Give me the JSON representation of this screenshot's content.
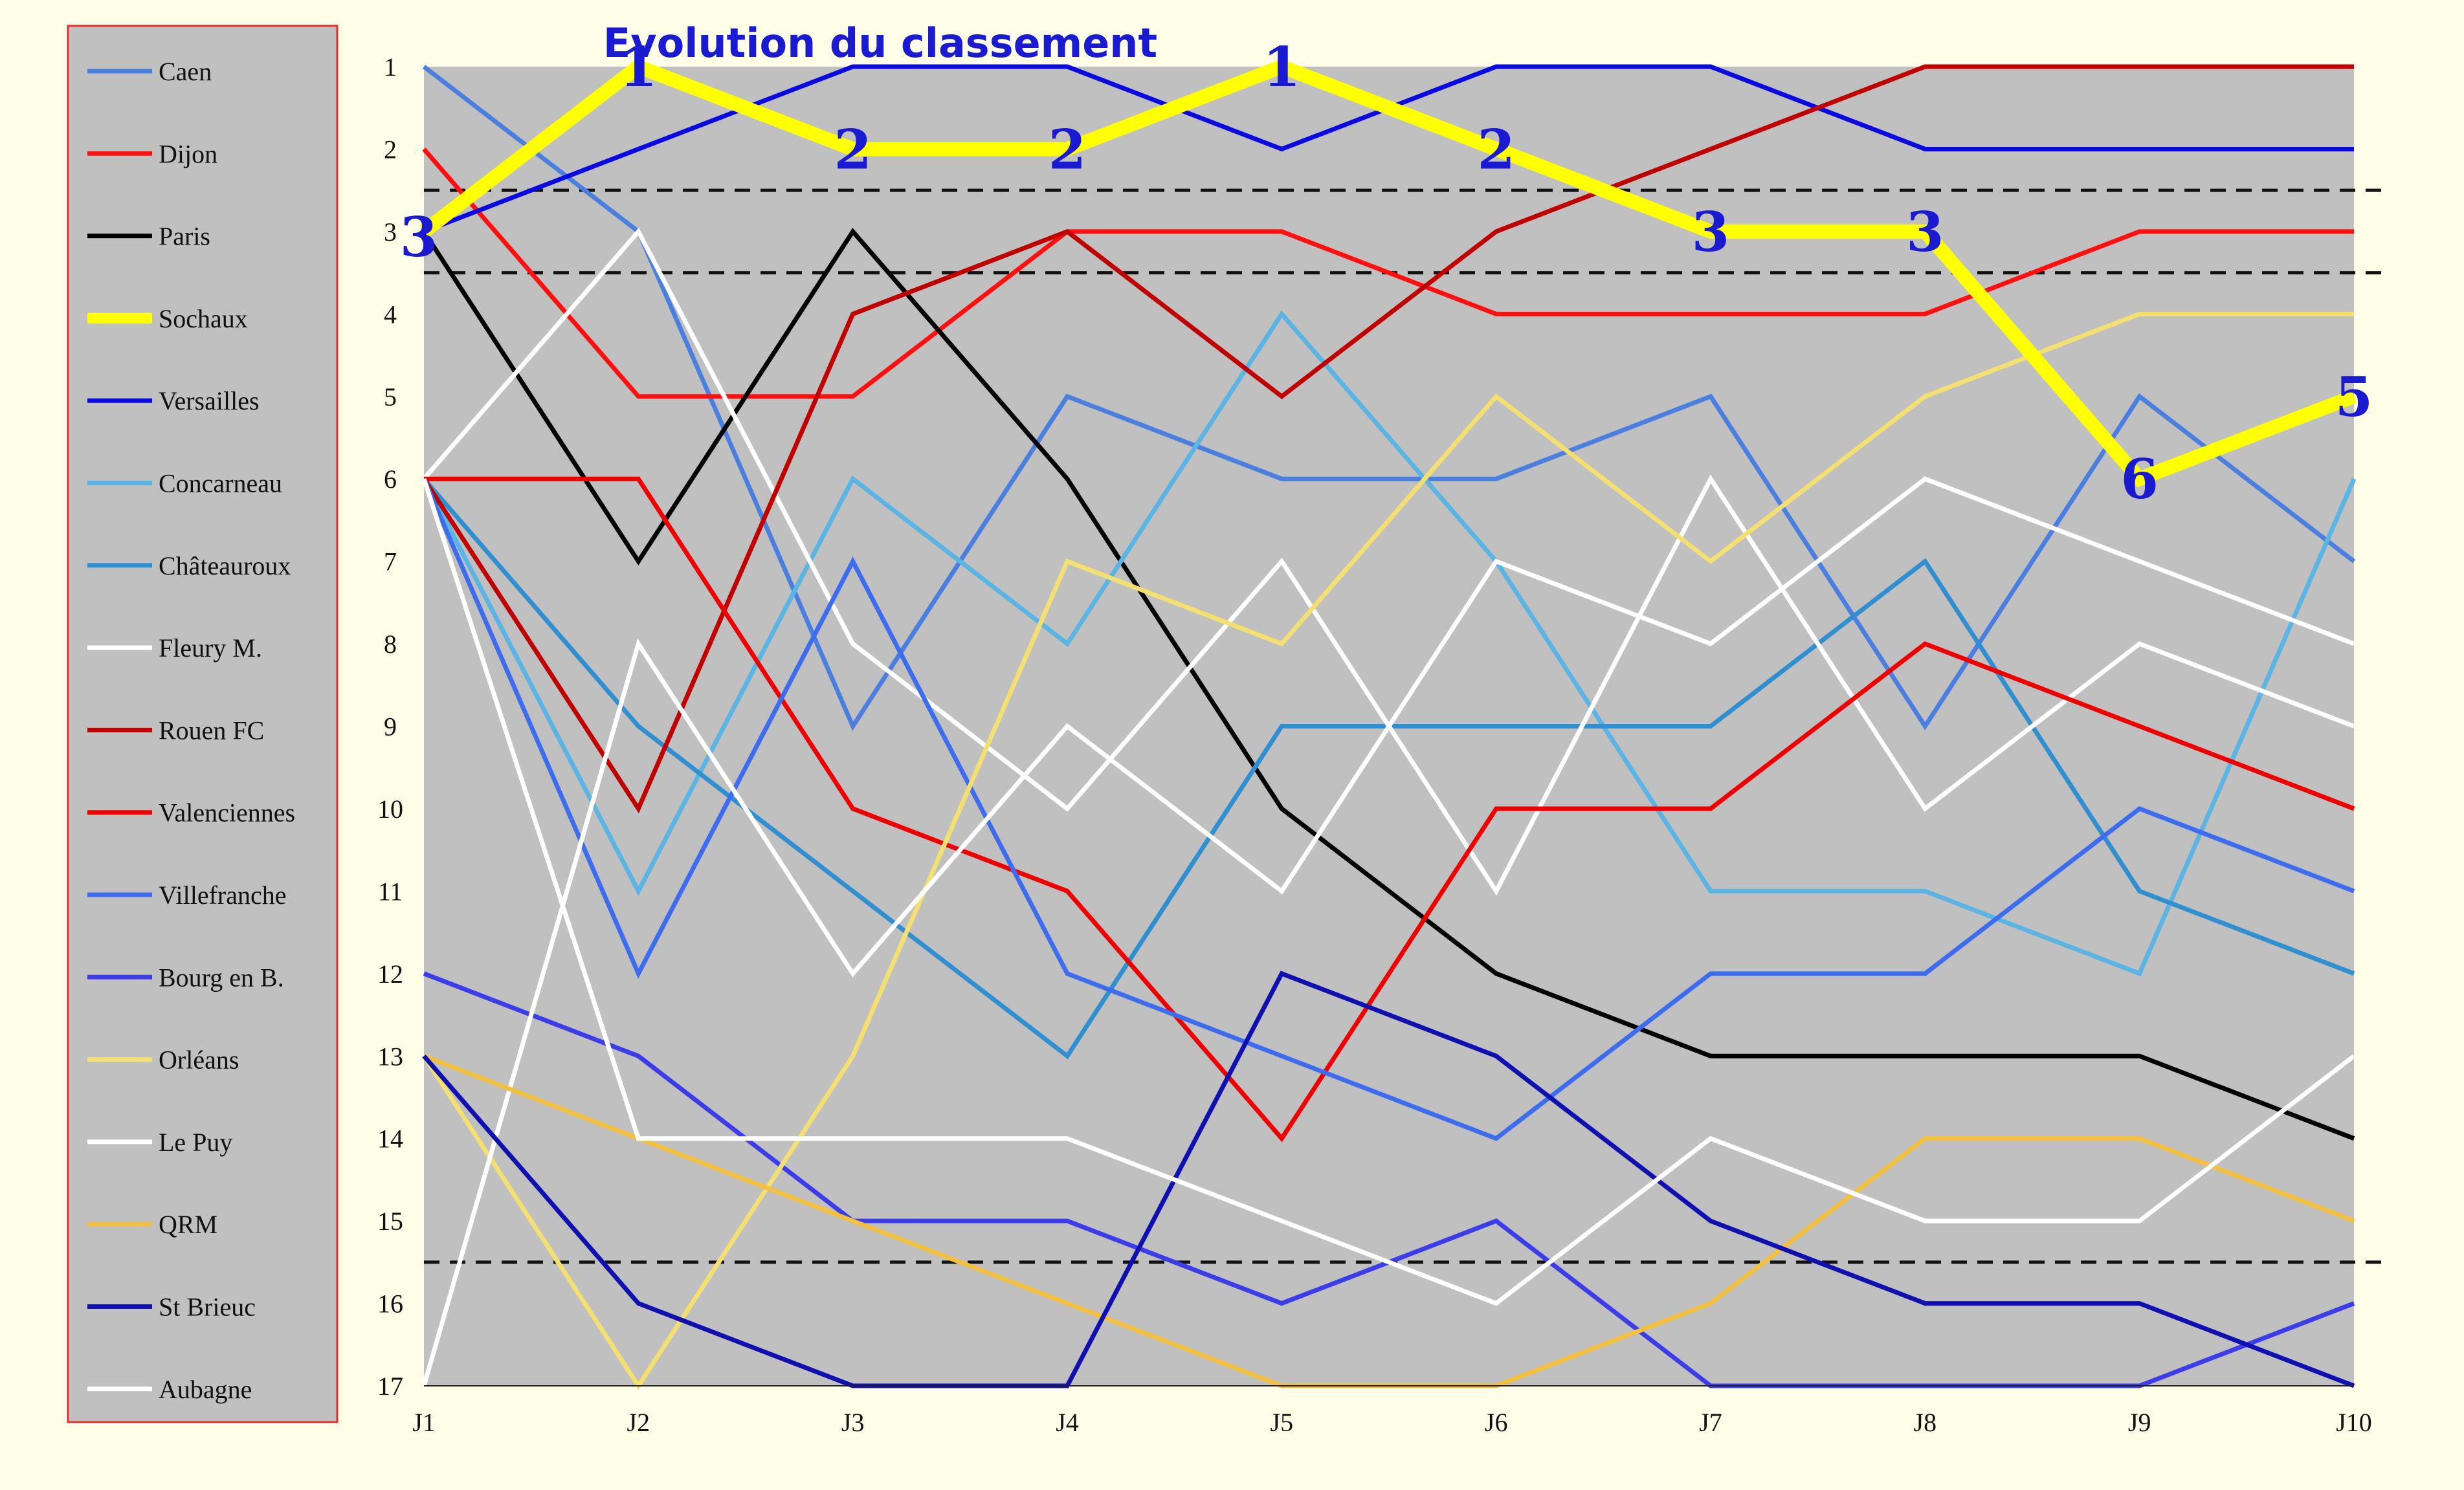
{
  "chart_data": {
    "type": "line",
    "title": "Evolution du classement",
    "xlabel": "",
    "ylabel": "",
    "x": [
      "J1",
      "J2",
      "J3",
      "J4",
      "J5",
      "J6",
      "J7",
      "J8",
      "J9",
      "J10"
    ],
    "ylim": [
      1,
      17
    ],
    "y_reversed": true,
    "y_ticks": [
      "1",
      "2",
      "3",
      "4",
      "5",
      "6",
      "7",
      "8",
      "9",
      "10",
      "11",
      "12",
      "13",
      "14",
      "15",
      "16",
      "17"
    ],
    "grid": false,
    "legend_position": "left",
    "background_color": "#c0c0c0",
    "page_color": "#fdfde8",
    "legend_border_color": "#e03030",
    "dashed_thresholds": [
      2.5,
      3.5,
      15.5
    ],
    "series": [
      {
        "name": "Caen",
        "color": "#4a7fe0",
        "values": [
          1,
          3,
          9,
          5,
          6,
          6,
          5,
          9,
          5,
          7
        ]
      },
      {
        "name": "Dijon",
        "color": "#ff1010",
        "values": [
          2,
          5,
          5,
          3,
          3,
          4,
          4,
          4,
          3,
          3
        ]
      },
      {
        "name": "Paris",
        "color": "#000000",
        "values": [
          3,
          7,
          3,
          6,
          10,
          12,
          13,
          13,
          13,
          14
        ]
      },
      {
        "name": "Sochaux",
        "color": "#ffff00",
        "values": [
          3,
          1,
          2,
          2,
          1,
          2,
          3,
          3,
          6,
          5
        ],
        "highlight": true
      },
      {
        "name": "Versailles",
        "color": "#0a0ae0",
        "values": [
          3,
          2,
          1,
          1,
          2,
          1,
          1,
          2,
          2,
          2
        ]
      },
      {
        "name": "Concarneau",
        "color": "#5ab4e4",
        "values": [
          6,
          11,
          6,
          8,
          4,
          7,
          11,
          11,
          12,
          6
        ]
      },
      {
        "name": "Châteauroux",
        "color": "#2f8fd0",
        "values": [
          6,
          9,
          11,
          13,
          9,
          9,
          9,
          7,
          11,
          12
        ]
      },
      {
        "name": "Fleury M.",
        "color": "#ffffff",
        "values": [
          6,
          3,
          8,
          10,
          7,
          11,
          6,
          10,
          8,
          9
        ]
      },
      {
        "name": "Rouen FC",
        "color": "#c00000",
        "values": [
          6,
          10,
          4,
          3,
          5,
          3,
          2,
          1,
          1,
          1
        ]
      },
      {
        "name": "Valenciennes",
        "color": "#ee0000",
        "values": [
          6,
          6,
          10,
          11,
          14,
          10,
          10,
          8,
          9,
          10
        ]
      },
      {
        "name": "Villefranche",
        "color": "#3d6cee",
        "values": [
          6,
          12,
          7,
          12,
          13,
          14,
          12,
          12,
          10,
          11
        ]
      },
      {
        "name": "Bourg en B.",
        "color": "#3c3ce8",
        "values": [
          12,
          13,
          15,
          15,
          16,
          15,
          17,
          17,
          17,
          16
        ]
      },
      {
        "name": "Orléans",
        "color": "#f4e070",
        "values": [
          13,
          17,
          13,
          7,
          8,
          5,
          7,
          5,
          4,
          4
        ]
      },
      {
        "name": "Le Puy",
        "color": "#ffffff",
        "values": [
          17,
          8,
          12,
          9,
          11,
          7,
          8,
          6,
          7,
          8
        ]
      },
      {
        "name": "QRM",
        "color": "#f4c040",
        "values": [
          13,
          14,
          15,
          16,
          17,
          17,
          16,
          14,
          14,
          15
        ]
      },
      {
        "name": "St Brieuc",
        "color": "#1010b0",
        "values": [
          13,
          16,
          17,
          17,
          12,
          13,
          15,
          16,
          16,
          17
        ]
      },
      {
        "name": "Aubagne",
        "color": "#ffffff",
        "values": [
          6,
          14,
          14,
          14,
          15,
          16,
          14,
          15,
          15,
          13
        ]
      }
    ],
    "annotations": {
      "series": "Sochaux",
      "labels": [
        "3",
        "1",
        "2",
        "2",
        "1",
        "2",
        "3",
        "3",
        "6",
        "5"
      ]
    }
  }
}
